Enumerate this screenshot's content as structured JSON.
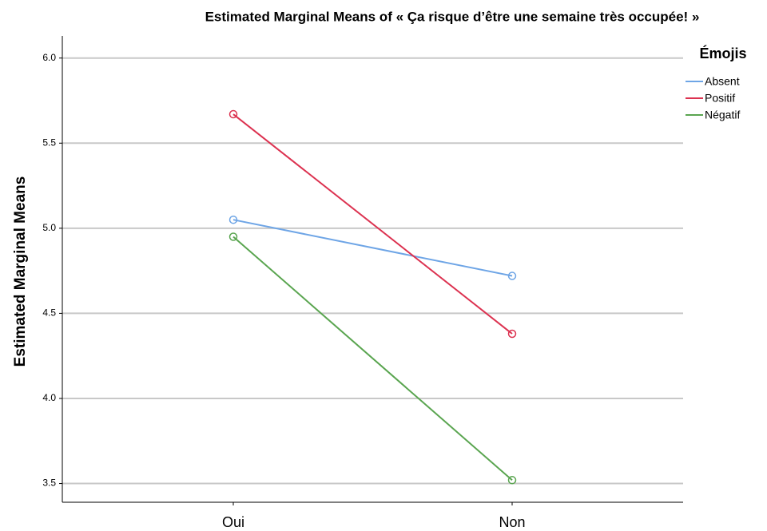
{
  "chart_data": {
    "type": "line",
    "title": "Estimated Marginal Means of « Ça risque d’être une semaine très occupée! »",
    "y_label": "Estimated Marginal Means",
    "legend_title": "Émojis",
    "legend_position": "top-right",
    "grid": true,
    "categories": [
      "Oui",
      "Non"
    ],
    "series": [
      {
        "name": "Absent",
        "color": "#6ea5e6",
        "values": [
          5.05,
          4.72
        ]
      },
      {
        "name": "Positif",
        "color": "#dc3250",
        "values": [
          5.67,
          4.38
        ]
      },
      {
        "name": "Négatif",
        "color": "#5aa550",
        "values": [
          4.95,
          3.52
        ]
      }
    ],
    "ylim": [
      3.39,
      6.13
    ],
    "yticks": [
      {
        "value": 3.5,
        "label": "3.5"
      },
      {
        "value": 4,
        "label": "4.0"
      },
      {
        "value": 4.5,
        "label": "4.5"
      },
      {
        "value": 5,
        "label": "5.0"
      },
      {
        "value": 5.5,
        "label": "5.5"
      },
      {
        "value": 6,
        "label": "6.0"
      }
    ]
  }
}
